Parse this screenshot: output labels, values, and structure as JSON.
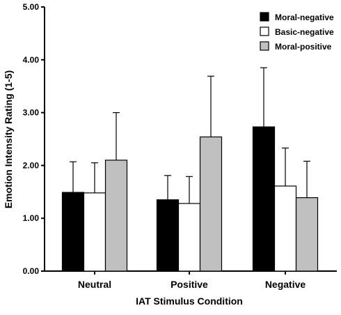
{
  "chart_data": {
    "type": "bar",
    "title": "",
    "xlabel": "IAT Stimulus Condition",
    "ylabel": "Emotion Intensity Rating (1-5)",
    "ylim": [
      0,
      5
    ],
    "yticks": [
      "0.00",
      "1.00",
      "2.00",
      "3.00",
      "4.00",
      "5.00"
    ],
    "categories": [
      "Neutral",
      "Positive",
      "Negative"
    ],
    "error_bars": "upper",
    "legend_position": "top-right",
    "series": [
      {
        "name": "Moral-negative",
        "color": "#000000",
        "values": [
          1.49,
          1.35,
          2.73
        ],
        "errors": [
          0.58,
          0.46,
          1.12
        ]
      },
      {
        "name": "Basic-negative",
        "color": "#ffffff",
        "values": [
          1.48,
          1.28,
          1.61
        ],
        "errors": [
          0.57,
          0.51,
          0.72
        ]
      },
      {
        "name": "Moral-positive",
        "color": "#c0c0c0",
        "values": [
          2.1,
          2.54,
          1.39
        ],
        "errors": [
          0.9,
          1.15,
          0.69
        ]
      }
    ]
  }
}
